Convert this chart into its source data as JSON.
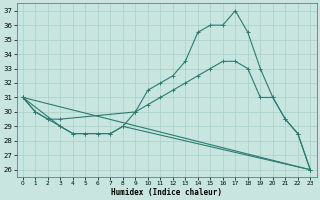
{
  "title": "",
  "xlabel": "Humidex (Indice chaleur)",
  "xlim": [
    -0.5,
    23.5
  ],
  "ylim": [
    25.5,
    37.5
  ],
  "xticks": [
    0,
    1,
    2,
    3,
    4,
    5,
    6,
    7,
    8,
    9,
    10,
    11,
    12,
    13,
    14,
    15,
    16,
    17,
    18,
    19,
    20,
    21,
    22,
    23
  ],
  "yticks": [
    26,
    27,
    28,
    29,
    30,
    31,
    32,
    33,
    34,
    35,
    36,
    37
  ],
  "bg_color": "#c8e6df",
  "line_color": "#2b7b72",
  "grid_color": "#a8d0c8",
  "curve1_x": [
    0,
    1,
    2,
    3,
    4,
    5,
    6,
    7,
    8,
    9,
    10,
    11,
    12,
    13,
    14,
    15,
    16,
    17,
    18,
    19,
    20,
    21,
    22,
    23
  ],
  "curve1_y": [
    31.0,
    30.0,
    29.5,
    29.0,
    28.5,
    28.5,
    28.5,
    28.5,
    29.0,
    30.0,
    31.5,
    32.0,
    32.5,
    33.5,
    35.5,
    36.0,
    36.0,
    37.0,
    35.5,
    33.0,
    31.0,
    29.5,
    28.5,
    26.0
  ],
  "curve2_x": [
    0,
    3,
    4,
    5,
    6,
    7,
    8,
    23
  ],
  "curve2_y": [
    31.0,
    29.0,
    28.5,
    28.5,
    28.5,
    28.5,
    29.0,
    26.0
  ],
  "curve3_x": [
    0,
    23
  ],
  "curve3_y": [
    31.0,
    26.0
  ],
  "curve4_x": [
    0,
    1,
    2,
    3,
    9,
    10,
    11,
    12,
    13,
    14,
    15,
    16,
    17,
    18,
    19,
    20,
    21,
    22,
    23
  ],
  "curve4_y": [
    31.0,
    30.0,
    29.5,
    29.5,
    30.0,
    30.5,
    31.0,
    31.5,
    32.0,
    32.5,
    33.0,
    33.5,
    33.5,
    33.0,
    31.0,
    31.0,
    29.5,
    28.5,
    26.0
  ]
}
